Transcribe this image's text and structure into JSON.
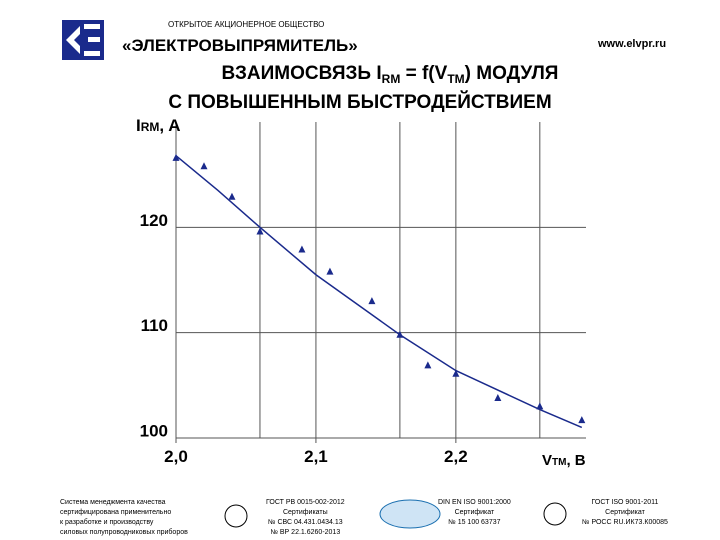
{
  "header": {
    "org": "ОТКРЫТОЕ АКЦИОНЕРНОЕ ОБЩЕСТВО",
    "company": "«ЭЛЕКТРОВЫПРЯМИТЕЛЬ»",
    "url": "www.elvpr.ru"
  },
  "chart_data": {
    "type": "scatter",
    "title_parts": [
      "ВЗАИМОСВЯЗЬ I",
      "RM",
      " = f(V",
      "TM",
      ") МОДУЛЯ"
    ],
    "subtitle": "С ПОВЫШЕННЫМ БЫСТРОДЕЙСТВИЕМ",
    "y_label_parts": [
      "I",
      "RM",
      ", A"
    ],
    "x_label_parts": [
      "V",
      "TM",
      ", B"
    ],
    "xlim": [
      2.0,
      2.293
    ],
    "ylim": [
      100,
      130
    ],
    "xticks": [
      {
        "value": 2.0,
        "label": "2,0"
      },
      {
        "value": 2.1,
        "label": "2,1"
      },
      {
        "value": 2.2,
        "label": "2,2"
      }
    ],
    "xgrid": [
      2.0,
      2.06,
      2.1,
      2.16,
      2.2,
      2.26
    ],
    "yticks": [
      100,
      110,
      120
    ],
    "grid": true,
    "series": [
      {
        "color": "#1a2a8c",
        "x": [
          2.0,
          2.02,
          2.04,
          2.06,
          2.09,
          2.11,
          2.14,
          2.16,
          2.18,
          2.2,
          2.23,
          2.26,
          2.29
        ],
        "values": [
          126.6,
          125.8,
          122.9,
          119.6,
          117.9,
          115.8,
          113.0,
          109.8,
          106.9,
          106.1,
          103.8,
          103.0,
          101.7
        ]
      },
      {
        "color": "#1a2a8c",
        "style": "line",
        "x": [
          2.0,
          2.03,
          2.06,
          2.1,
          2.16,
          2.2,
          2.26,
          2.29
        ],
        "values": [
          126.8,
          123.5,
          120.0,
          115.5,
          109.8,
          106.4,
          102.7,
          101.0
        ]
      }
    ]
  },
  "footer": [
    [
      "Система менеджмента качества",
      "сертифицирована применительно",
      "к разработке и производству",
      "силовых полупроводниковых приборов"
    ],
    [
      "ГОСТ РВ 0015-002-2012",
      "Сертификаты",
      "№ СВС 04.431.0434.13",
      "№ ВР 22.1.6260-2013"
    ],
    [
      "DIN EN ISO 9001:2000",
      "Сертификат",
      "№ 15 100 63737"
    ],
    [
      "ГОСТ ISO 9001-2011",
      "Сертификат",
      "№ РОСС RU.ИК73.К00085"
    ]
  ]
}
